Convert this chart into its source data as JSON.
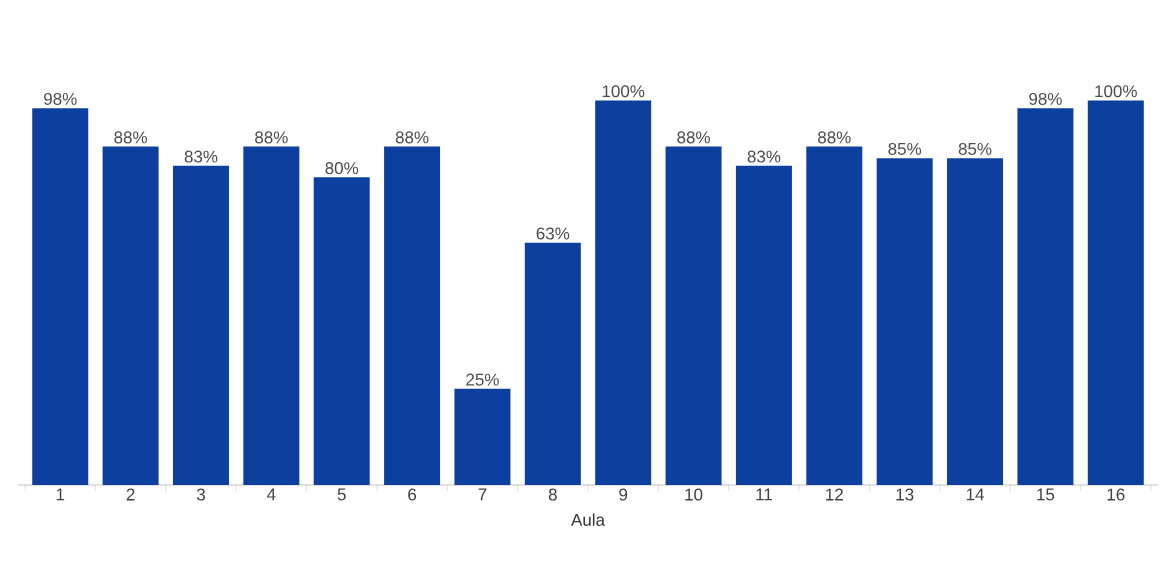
{
  "chart_data": {
    "type": "bar",
    "xlabel": "Aula",
    "categories": [
      "1",
      "2",
      "3",
      "4",
      "5",
      "6",
      "7",
      "8",
      "9",
      "10",
      "11",
      "12",
      "13",
      "14",
      "15",
      "16"
    ],
    "values": [
      98,
      88,
      83,
      88,
      80,
      88,
      25,
      63,
      100,
      88,
      83,
      88,
      85,
      85,
      98,
      100
    ],
    "value_labels": [
      "98%",
      "88%",
      "83%",
      "88%",
      "80%",
      "88%",
      "25%",
      "63%",
      "100%",
      "88%",
      "83%",
      "88%",
      "85%",
      "85%",
      "98%",
      "100%"
    ],
    "color": "#0c3f9e"
  }
}
